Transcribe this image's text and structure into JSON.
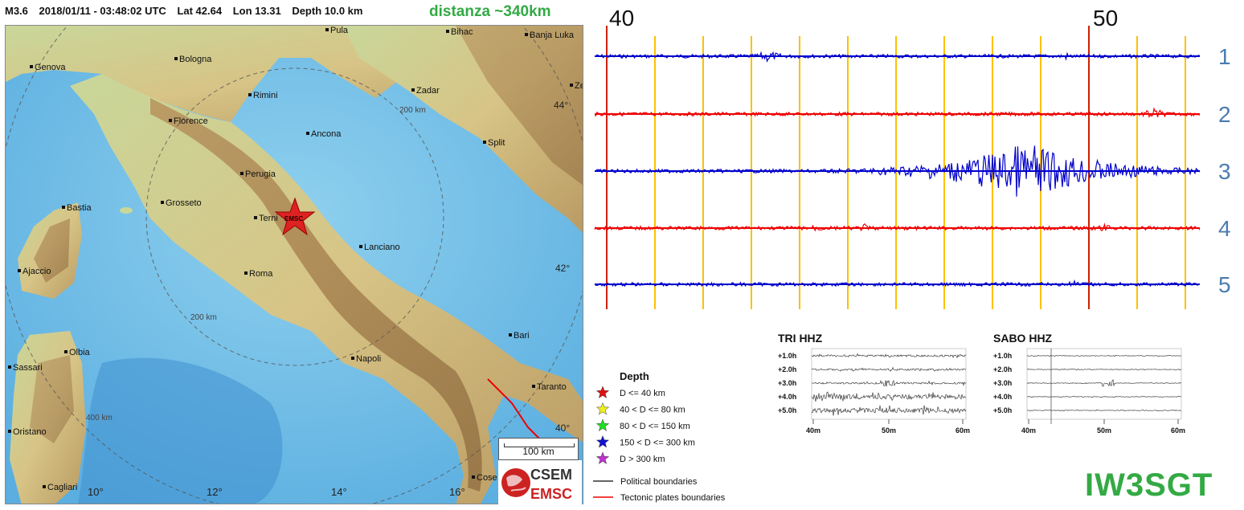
{
  "event": {
    "magnitude": "M3.6",
    "datetime": "2018/01/11 - 03:48:02 UTC",
    "lat": "Lat 42.64",
    "lon": "Lon 13.31",
    "depth": "Depth  10.0 km",
    "distance": "distanza ~340km"
  },
  "map": {
    "cities": [
      "Pula",
      "Bihac",
      "Banja Luka",
      "Genova",
      "Bologna",
      "Rimini",
      "Zadar",
      "Florence",
      "Ancona",
      "Split",
      "Bastia",
      "Perugia",
      "Grosseto",
      "Terni",
      "Lanciano",
      "Ajaccio",
      "Roma",
      "Bari",
      "Olbia",
      "Napoli",
      "Sassari",
      "Taranto",
      "Oristano",
      "Cagliari",
      "Cose",
      "Ze"
    ],
    "lat_labels": [
      "44°",
      "42°",
      "40°"
    ],
    "lon_labels": [
      "10°",
      "12°",
      "14°",
      "16°"
    ],
    "ring_labels": [
      "200 km",
      "200 km",
      "400 km"
    ],
    "marker_label": "EMSC",
    "scale_label": "100 km",
    "logo_top": "CSEM",
    "logo_bottom": "EMSC"
  },
  "seismogram": {
    "minute_labels": [
      "40",
      "50"
    ],
    "trace_labels": [
      "1",
      "2",
      "3",
      "4",
      "5"
    ],
    "trace_colors": [
      "#0000cc",
      "#ee0000",
      "#0000cc",
      "#ee0000",
      "#0000cc"
    ],
    "gridline_color": "#ffc000",
    "marker_color": "#cc2200"
  },
  "helicorders": [
    {
      "title": "TRI HHZ",
      "rows": [
        "+1.0h",
        "+2.0h",
        "+3.0h",
        "+4.0h",
        "+5.0h"
      ],
      "xticks": [
        "40m",
        "50m",
        "60m"
      ]
    },
    {
      "title": "SABO HHZ",
      "rows": [
        "+1.0h",
        "+2.0h",
        "+3.0h",
        "+4.0h",
        "+5.0h"
      ],
      "xticks": [
        "40m",
        "50m",
        "60m"
      ]
    }
  ],
  "legend": {
    "title": "Depth",
    "items": [
      {
        "label": "D <= 40 km",
        "color": "#dd1111"
      },
      {
        "label": "40 < D <= 80 km",
        "color": "#eeee22"
      },
      {
        "label": "80 < D <= 150 km",
        "color": "#22dd22"
      },
      {
        "label": "150 < D <= 300 km",
        "color": "#1111cc"
      },
      {
        "label": "D > 300 km",
        "color": "#bb33cc"
      }
    ],
    "lines": [
      {
        "label": "Political boundaries",
        "color": "#333333"
      },
      {
        "label": "Tectonic plates boundaries",
        "color": "#ee0000"
      }
    ]
  },
  "callsign": "IW3SGT"
}
